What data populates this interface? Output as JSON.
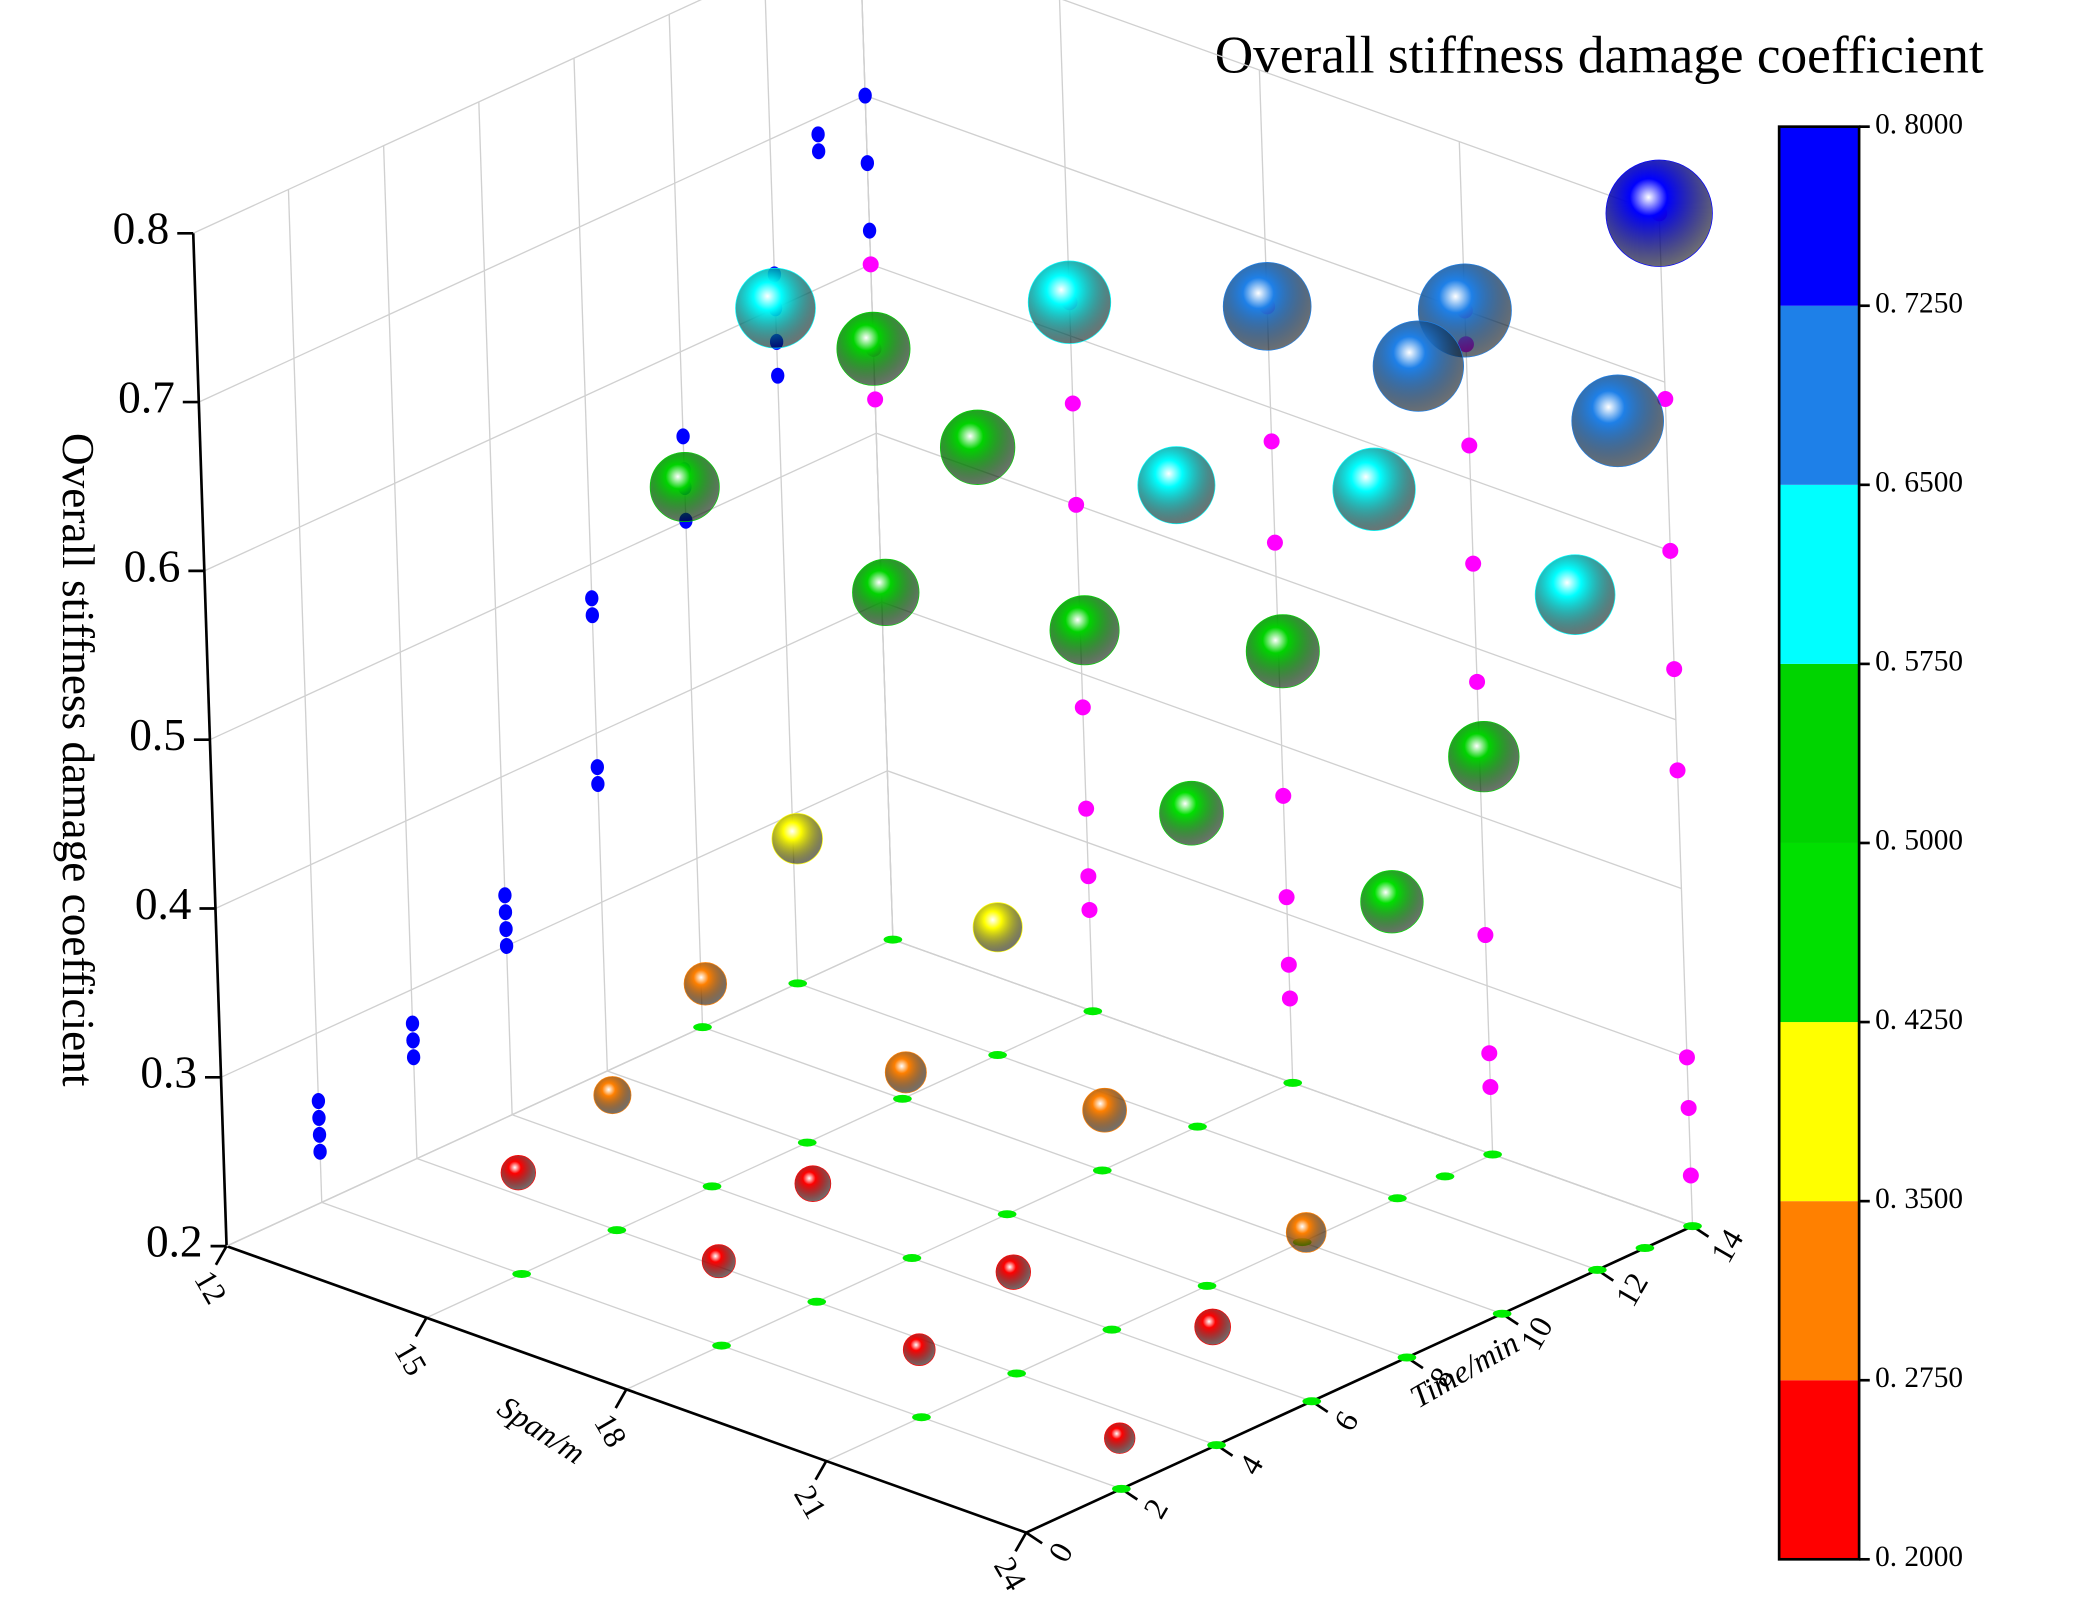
{
  "chart_data": {
    "type": "scatter3d",
    "title": "Overall stiffness damage coefficient",
    "xlabel": "Span/m",
    "ylabel": "Time/min",
    "zlabel": "Overall stiffness damage coefficient",
    "xlim": [
      12,
      24
    ],
    "xticks": [
      12,
      15,
      18,
      21,
      24
    ],
    "ylim": [
      0,
      14
    ],
    "yticks": [
      0,
      2,
      4,
      6,
      8,
      10,
      12,
      14
    ],
    "zlim": [
      0.2,
      0.8
    ],
    "zticks": [
      0.2,
      0.3,
      0.4,
      0.5,
      0.6,
      0.7,
      0.8
    ],
    "x": [
      15,
      18,
      21,
      24,
      15,
      18,
      21,
      24,
      15,
      18,
      21,
      24,
      15,
      18,
      21,
      24,
      15,
      18,
      21,
      24,
      15,
      18,
      21,
      24,
      12,
      15,
      18,
      21,
      24,
      12,
      12,
      21,
      24
    ],
    "y": [
      2,
      2,
      2,
      2,
      4,
      4,
      4,
      4,
      6,
      6,
      6,
      6,
      8,
      8,
      8,
      8,
      10,
      10,
      10,
      10,
      12,
      12,
      12,
      12,
      14,
      14,
      14,
      14,
      14,
      12,
      10,
      13,
      13
    ],
    "z": [
      0.26,
      0.25,
      0.24,
      0.23,
      0.28,
      0.27,
      0.26,
      0.27,
      0.32,
      0.31,
      0.33,
      0.3,
      0.38,
      0.37,
      0.48,
      0.47,
      0.5,
      0.52,
      0.55,
      0.53,
      0.56,
      0.58,
      0.62,
      0.6,
      0.55,
      0.62,
      0.66,
      0.7,
      0.8,
      0.6,
      0.52,
      0.68,
      0.69
    ],
    "wall_colors": {
      "left": "#0000ff",
      "back": "#ff00ff",
      "floor": "#00ee00"
    },
    "colorbar": {
      "levels": [
        {
          "value": 0.2,
          "label": "0. 2000"
        },
        {
          "value": 0.275,
          "label": "0. 2750"
        },
        {
          "value": 0.35,
          "label": "0. 3500"
        },
        {
          "value": 0.425,
          "label": "0. 4250"
        },
        {
          "value": 0.5,
          "label": "0. 5000"
        },
        {
          "value": 0.575,
          "label": "0. 5750"
        },
        {
          "value": 0.65,
          "label": "0. 6500"
        },
        {
          "value": 0.725,
          "label": "0. 7250"
        },
        {
          "value": 0.8,
          "label": "0. 8000"
        }
      ],
      "colors": [
        "#ff0000",
        "#ff8000",
        "#ffff00",
        "#00e000",
        "#00d400",
        "#00ffff",
        "#1e80e8",
        "#0000ff"
      ]
    }
  }
}
